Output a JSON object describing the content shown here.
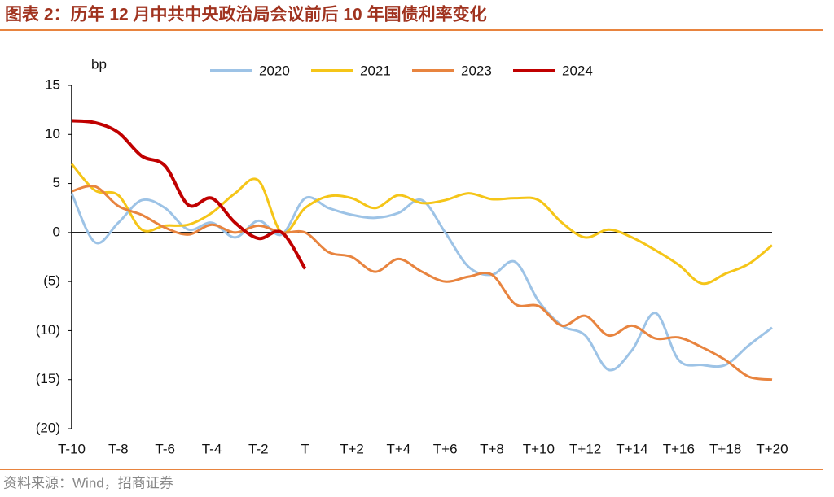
{
  "title": "图表 2：历年 12 月中共中央政治局会议前后 10 年国债利率变化",
  "source": "资料来源：Wind，招商证券",
  "chart_data": {
    "type": "line",
    "ylabel": "bp",
    "categories": [
      "T-10",
      null,
      "T-8",
      null,
      "T-6",
      null,
      "T-4",
      null,
      "T-2",
      null,
      "T",
      null,
      "T+2",
      null,
      "T+4",
      null,
      "T+6",
      null,
      "T+8",
      null,
      "T+10",
      null,
      "T+12",
      null,
      "T+14",
      null,
      "T+16",
      null,
      "T+18",
      null,
      "T+20"
    ],
    "ylim": [
      -20,
      15
    ],
    "yticks": [
      15,
      10,
      5,
      0,
      {
        "value": -5,
        "label": "(5)"
      },
      {
        "value": -10,
        "label": "(10)"
      },
      {
        "value": -15,
        "label": "(15)"
      },
      {
        "value": -20,
        "label": "(20)"
      }
    ],
    "series": [
      {
        "name": "2020",
        "color": "#9dc3e6",
        "values": [
          4,
          -1,
          1,
          3.3,
          2.5,
          0.3,
          1,
          -0.5,
          1.2,
          -0.2,
          3.5,
          2.5,
          1.8,
          1.5,
          2,
          3.3,
          0,
          -3.5,
          -4.3,
          -3,
          -7,
          -9.5,
          -10.5,
          -14,
          -12,
          -8.2,
          -13,
          -13.5,
          -13.5,
          -11.5,
          -9.7
        ]
      },
      {
        "name": "2021",
        "color": "#f5c518",
        "values": [
          7,
          4.3,
          3.8,
          0.3,
          0.7,
          0.8,
          2,
          4,
          5.3,
          0,
          2.5,
          3.7,
          3.5,
          2.5,
          3.8,
          3,
          3.3,
          4,
          3.4,
          3.5,
          3.3,
          1,
          -0.5,
          0.3,
          -0.5,
          -1.8,
          -3.3,
          -5.2,
          -4.2,
          -3.2,
          -1.3
        ]
      },
      {
        "name": "2023",
        "color": "#e8843f",
        "values": [
          4.2,
          4.7,
          2.7,
          1.8,
          0.5,
          -0.2,
          0.8,
          0,
          0.7,
          0,
          0,
          -2,
          -2.5,
          -4,
          -2.7,
          -4,
          -5,
          -4.5,
          -4.3,
          -7.3,
          -7.5,
          -9.5,
          -8.5,
          -10.5,
          -9.5,
          -10.8,
          -10.7,
          -11.7,
          -13,
          -14.7,
          -15
        ]
      },
      {
        "name": "2024",
        "color": "#c00000",
        "values": [
          11.4,
          11.2,
          10.2,
          7.8,
          6.8,
          2.8,
          3.5,
          1,
          -0.6,
          0,
          -3.7,
          null,
          null,
          null,
          null,
          null,
          null,
          null,
          null,
          null,
          null,
          null,
          null,
          null,
          null,
          null,
          null,
          null,
          null,
          null,
          null
        ]
      }
    ]
  }
}
